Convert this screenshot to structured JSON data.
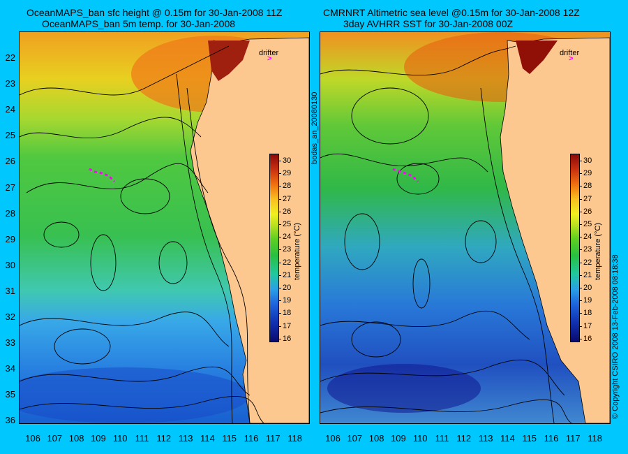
{
  "left_panel": {
    "title_line1": "OceanMAPS_ban sfc height @ 0.15m for 30-Jan-2008 11Z",
    "title_line2": "OceanMAPS_ban 5m temp. for 30-Jan-2008"
  },
  "right_panel": {
    "title_line1": "CMRNRT Altimetric sea level  @0.15m  for 30-Jan-2008 12Z",
    "title_line2": "3day AVHRR SST for 30-Jan-2008 00Z"
  },
  "side_label": "bodas_an_20080130",
  "copyright": "© Copyright CSIRO 2008   13-Feb-2008 08:18:38",
  "drifter_label": "drifter",
  "colorbar": {
    "label": "temperature (°C)",
    "ticks": [
      "30",
      "29",
      "28",
      "27",
      "26",
      "25",
      "24",
      "23",
      "22",
      "21",
      "20",
      "19",
      "18",
      "17",
      "16"
    ]
  },
  "y_ticks": [
    "22",
    "23",
    "24",
    "25",
    "26",
    "27",
    "28",
    "29",
    "30",
    "31",
    "32",
    "33",
    "34",
    "35",
    "36"
  ],
  "x_ticks": [
    "106",
    "107",
    "108",
    "109",
    "110",
    "111",
    "112",
    "113",
    "114",
    "115",
    "116",
    "117",
    "118"
  ],
  "colors": {
    "background": "#00c8ff",
    "land": "#fcc890",
    "drifter": "#ff00ff"
  }
}
